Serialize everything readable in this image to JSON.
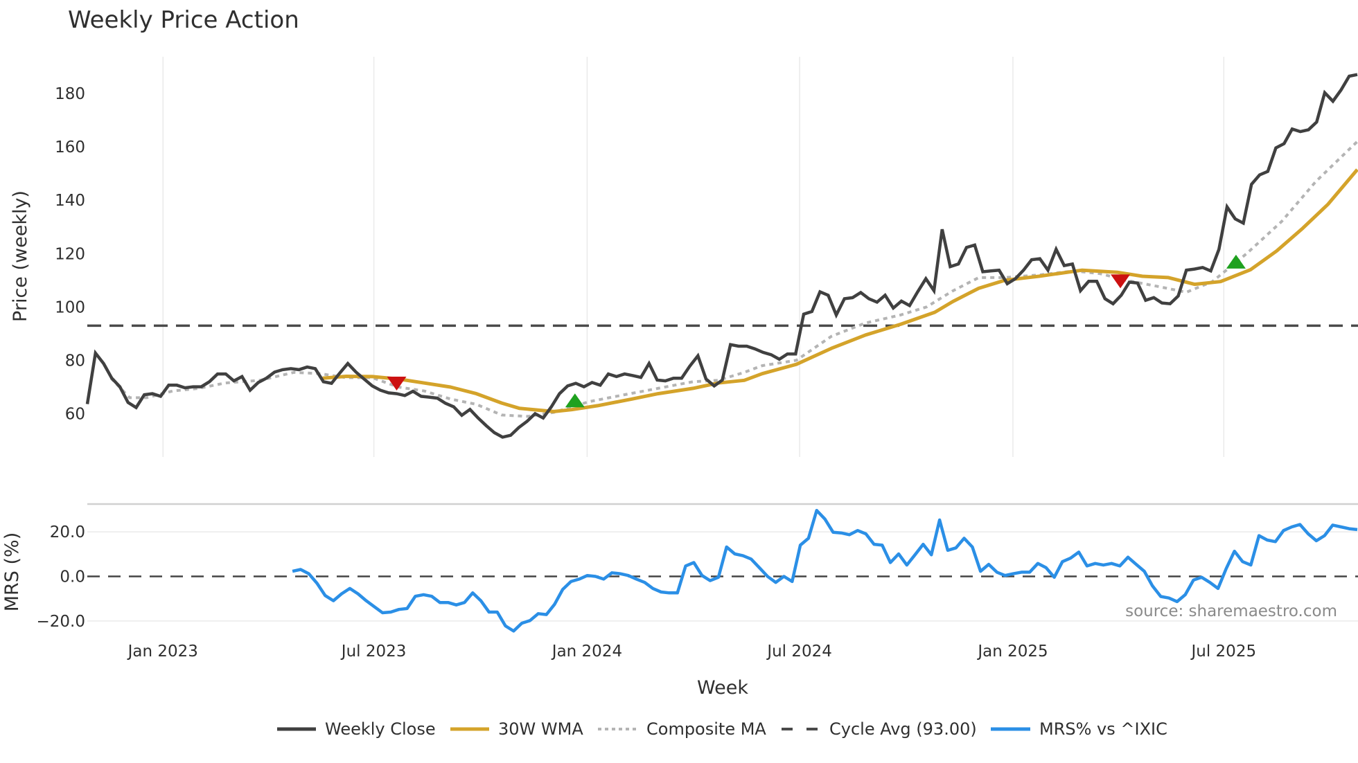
{
  "chart_data": {
    "type": "line",
    "title": "Weekly Price Action",
    "xlabel": "Week",
    "x_ticks": [
      "Jan 2023",
      "Jul 2023",
      "Jan 2024",
      "Jul 2024",
      "Jan 2025",
      "Jul 2025"
    ],
    "x_tick_weeks": [
      9.3,
      35.2,
      61.4,
      87.5,
      113.7,
      139.6
    ],
    "panels": [
      {
        "name": "price",
        "ylabel": "Price (weekly)",
        "yticks": [
          60,
          80,
          100,
          120,
          140,
          160,
          180
        ],
        "ylim": [
          46,
          194
        ],
        "grid": "vertical"
      },
      {
        "name": "mrs",
        "ylabel": "MRS (%)",
        "yticks": [
          "−20.0",
          "0.0",
          "20.0"
        ],
        "ytick_values": [
          -20,
          0,
          20
        ],
        "ylim": [
          -28,
          32
        ],
        "grid": "horizontal"
      }
    ],
    "series": [
      {
        "name": "Weekly Close",
        "color": "#404040",
        "style": "solid",
        "start_week": 0,
        "values": [
          63.6,
          82.7,
          78.8,
          73.3,
          70.1,
          64.2,
          62.3,
          67.1,
          67.5,
          66.5,
          70.7,
          70.7,
          69.7,
          70.1,
          70.1,
          72.0,
          74.9,
          74.9,
          72.3,
          73.9,
          68.8,
          71.7,
          73.3,
          75.6,
          76.5,
          76.9,
          76.5,
          77.5,
          76.9,
          72.0,
          71.4,
          75.2,
          78.8,
          75.6,
          73.0,
          70.4,
          68.8,
          67.8,
          67.5,
          66.8,
          68.4,
          66.5,
          66.2,
          65.8,
          63.9,
          62.6,
          59.4,
          61.6,
          58.4,
          55.5,
          52.9,
          51.2,
          51.9,
          54.8,
          57.1,
          60.0,
          58.4,
          62.6,
          67.5,
          70.4,
          71.4,
          70.1,
          71.7,
          70.7,
          74.9,
          73.9,
          74.9,
          74.3,
          73.6,
          78.8,
          72.6,
          72.3,
          73.3,
          73.3,
          77.8,
          81.7,
          73.0,
          70.4,
          72.6,
          85.9,
          85.3,
          85.3,
          84.3,
          83.0,
          82.1,
          80.4,
          82.4,
          82.4,
          97.3,
          98.3,
          105.7,
          104.4,
          97.0,
          103.1,
          103.5,
          105.4,
          103.1,
          101.8,
          104.4,
          99.6,
          102.2,
          100.5,
          105.7,
          110.6,
          106.1,
          129.1,
          115.1,
          116.1,
          122.3,
          123.2,
          113.2,
          113.5,
          113.8,
          108.7,
          110.6,
          113.8,
          117.7,
          118.1,
          113.8,
          121.6,
          115.5,
          116.1,
          106.1,
          109.6,
          109.6,
          103.1,
          101.2,
          104.4,
          109.3,
          109.0,
          102.5,
          103.5,
          101.5,
          101.2,
          104.1,
          113.8,
          114.2,
          114.8,
          113.5,
          121.6,
          137.5,
          133.0,
          131.4,
          146.0,
          149.5,
          150.8,
          159.6,
          161.2,
          166.7,
          165.7,
          166.4,
          169.3,
          180.3,
          177.1,
          181.3,
          186.5,
          187.1
        ]
      },
      {
        "name": "30W WMA",
        "color": "#d4a32a",
        "style": "solid",
        "points": [
          [
            28.9,
            73.3
          ],
          [
            31.8,
            74.0
          ],
          [
            35.0,
            73.9
          ],
          [
            38.2,
            73.0
          ],
          [
            41.4,
            71.5
          ],
          [
            44.6,
            70.0
          ],
          [
            47.8,
            67.5
          ],
          [
            50.9,
            64.0
          ],
          [
            53.1,
            62.0
          ],
          [
            57.3,
            60.8
          ],
          [
            59.5,
            61.5
          ],
          [
            62.7,
            63.0
          ],
          [
            66.9,
            65.5
          ],
          [
            70.1,
            67.5
          ],
          [
            74.4,
            69.5
          ],
          [
            77.5,
            71.5
          ],
          [
            80.7,
            72.5
          ],
          [
            82.9,
            75.0
          ],
          [
            87.1,
            78.5
          ],
          [
            91.4,
            84.5
          ],
          [
            95.6,
            89.5
          ],
          [
            99.9,
            93.5
          ],
          [
            104.1,
            98.0
          ],
          [
            106.3,
            102.0
          ],
          [
            109.5,
            107.0
          ],
          [
            112.7,
            110.0
          ],
          [
            116.9,
            111.5
          ],
          [
            122.2,
            113.8
          ],
          [
            126.5,
            113.0
          ],
          [
            129.6,
            111.5
          ],
          [
            132.8,
            111.0
          ],
          [
            136.0,
            108.5
          ],
          [
            139.2,
            109.5
          ],
          [
            142.9,
            114.0
          ],
          [
            146.1,
            121.0
          ],
          [
            149.3,
            129.5
          ],
          [
            152.4,
            138.5
          ],
          [
            156.0,
            151.5
          ]
        ]
      },
      {
        "name": "Composite MA",
        "color": "#b4b4b4",
        "style": "dotted",
        "points": [
          [
            2.9,
            73.3
          ],
          [
            5.2,
            66.0
          ],
          [
            7.3,
            66.0
          ],
          [
            10.5,
            68.5
          ],
          [
            13.7,
            69.5
          ],
          [
            16.9,
            71.5
          ],
          [
            21.2,
            72.5
          ],
          [
            25.4,
            75.5
          ],
          [
            28.6,
            75.0
          ],
          [
            31.8,
            73.5
          ],
          [
            35.0,
            73.5
          ],
          [
            38.2,
            70.0
          ],
          [
            41.4,
            68.5
          ],
          [
            44.6,
            65.5
          ],
          [
            47.8,
            63.5
          ],
          [
            50.9,
            59.5
          ],
          [
            54.1,
            59.0
          ],
          [
            57.3,
            60.5
          ],
          [
            61.6,
            64.5
          ],
          [
            65.8,
            67.0
          ],
          [
            70.1,
            69.5
          ],
          [
            74.4,
            72.0
          ],
          [
            77.5,
            72.5
          ],
          [
            80.7,
            75.5
          ],
          [
            82.9,
            78.0
          ],
          [
            87.1,
            80.0
          ],
          [
            91.4,
            89.0
          ],
          [
            95.6,
            94.0
          ],
          [
            99.9,
            97.0
          ],
          [
            103.1,
            100.0
          ],
          [
            106.3,
            106.0
          ],
          [
            109.5,
            111.0
          ],
          [
            112.7,
            111.0
          ],
          [
            116.9,
            112.0
          ],
          [
            121.2,
            113.5
          ],
          [
            124.4,
            112.5
          ],
          [
            127.6,
            110.0
          ],
          [
            131.8,
            107.5
          ],
          [
            135.0,
            105.5
          ],
          [
            138.2,
            109.5
          ],
          [
            142.4,
            120.0
          ],
          [
            146.7,
            132.0
          ],
          [
            150.9,
            147.0
          ],
          [
            156.0,
            162.0
          ]
        ]
      },
      {
        "name": "Cycle Avg (93.00)",
        "color": "#4a4a4a",
        "style": "dashed",
        "value": 93.0
      },
      {
        "name": "MRS% vs ^IXIC",
        "color": "#2b8fe6",
        "style": "solid",
        "panel": "mrs",
        "start_week": 25.2,
        "values": [
          2.3,
          3.1,
          1.2,
          -3.1,
          -8.6,
          -10.9,
          -7.8,
          -5.4,
          -7.8,
          -10.9,
          -13.6,
          -16.3,
          -16.0,
          -14.8,
          -14.4,
          -8.9,
          -8.2,
          -8.9,
          -11.7,
          -11.7,
          -12.8,
          -11.7,
          -7.4,
          -10.9,
          -16.0,
          -16.0,
          -22.2,
          -24.5,
          -21.0,
          -19.8,
          -16.7,
          -17.1,
          -12.5,
          -5.8,
          -2.3,
          -1.2,
          0.4,
          0.0,
          -1.2,
          1.6,
          1.2,
          0.4,
          -1.2,
          -2.7,
          -5.4,
          -7.0,
          -7.4,
          -7.4,
          4.7,
          6.2,
          0.4,
          -1.9,
          -0.4,
          13.2,
          10.1,
          9.3,
          7.8,
          3.9,
          0.0,
          -2.7,
          0.0,
          -2.3,
          14.0,
          17.1,
          29.6,
          25.7,
          19.8,
          19.5,
          18.7,
          20.6,
          19.1,
          14.4,
          14.0,
          6.2,
          10.1,
          5.1,
          9.7,
          14.4,
          9.7,
          25.3,
          11.7,
          12.8,
          17.1,
          13.2,
          2.3,
          5.4,
          1.9,
          0.4,
          1.2,
          1.9,
          1.9,
          5.8,
          3.9,
          -0.4,
          6.6,
          8.2,
          10.9,
          4.7,
          5.8,
          5.1,
          5.8,
          4.7,
          8.6,
          5.4,
          2.3,
          -4.3,
          -9.0,
          -9.7,
          -11.3,
          -8.2,
          -1.6,
          -0.4,
          -2.7,
          -5.4,
          3.5,
          11.3,
          6.6,
          5.1,
          18.3,
          16.3,
          15.6,
          20.6,
          22.2,
          23.3,
          19.1,
          16.0,
          18.3,
          23.0,
          22.2,
          21.4,
          21.0
        ]
      }
    ],
    "signals": [
      {
        "type": "sell",
        "shape": "triangle-down",
        "color": "#cc1111",
        "week": 38.0,
        "value": 71.3
      },
      {
        "type": "buy",
        "shape": "triangle-up",
        "color": "#1fa11f",
        "week": 59.9,
        "value": 65.0
      },
      {
        "type": "sell",
        "shape": "triangle-down",
        "color": "#cc1111",
        "week": 126.9,
        "value": 109.6
      },
      {
        "type": "buy",
        "shape": "triangle-up",
        "color": "#1fa11f",
        "week": 141.1,
        "value": 117.0
      }
    ],
    "legend": {
      "position": "bottom",
      "items": [
        "Weekly Close",
        "30W WMA",
        "Composite MA",
        "Cycle Avg (93.00)",
        "MRS% vs ^IXIC"
      ]
    },
    "annotations": [
      "source: sharemaestro.com"
    ]
  },
  "header": {
    "title": "Weekly Price Action"
  },
  "axes": {
    "price_ylabel": "Price (weekly)",
    "mrs_ylabel": "MRS (%)",
    "xlabel": "Week"
  },
  "source_note": "source: sharemaestro.com",
  "legend": {
    "weekly_close": "Weekly Close",
    "wma": "30W WMA",
    "composite": "Composite MA",
    "cycle": "Cycle Avg (93.00)",
    "mrs": "MRS% vs ^IXIC"
  }
}
